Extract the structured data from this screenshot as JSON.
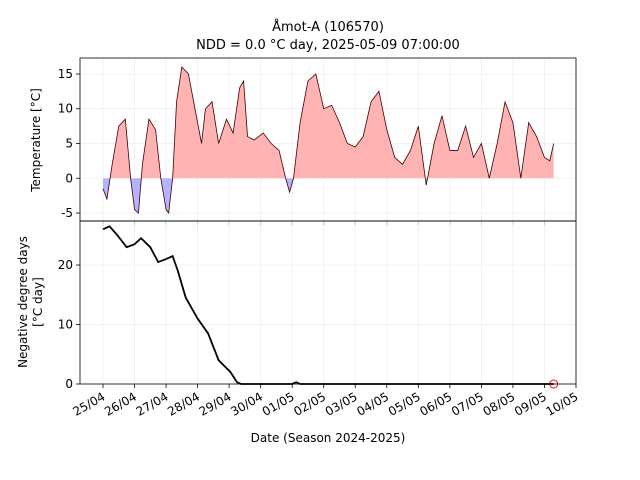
{
  "chart_data": [
    {
      "type": "area",
      "title": "Åmot-A (106570)",
      "subtitle": "NDD = 0.0 °C day, 2025-05-09 07:00:00",
      "ylabel": "Temperature [°C]",
      "xlim": [
        "2025-04-24T06:30",
        "2025-05-10T00:00"
      ],
      "ylim": [
        -6.15,
        17.3
      ],
      "yticks": [
        -5,
        0,
        5,
        10,
        15
      ],
      "grid": true,
      "line_color": "#400000",
      "positive_color": "#ffb3b3",
      "negative_color": "#b3b3ff",
      "x": [
        "2025-04-25T00:00",
        "2025-04-25T03:00",
        "2025-04-25T07:00",
        "2025-04-25T12:00",
        "2025-04-25T17:00",
        "2025-04-25T21:00",
        "2025-04-26T00:00",
        "2025-04-26T03:00",
        "2025-04-26T06:00",
        "2025-04-26T11:00",
        "2025-04-26T16:00",
        "2025-04-26T20:00",
        "2025-04-27T00:00",
        "2025-04-27T02:00",
        "2025-04-27T05:00",
        "2025-04-27T08:00",
        "2025-04-27T12:00",
        "2025-04-27T17:00",
        "2025-04-27T22:00",
        "2025-04-28T03:00",
        "2025-04-28T06:00",
        "2025-04-28T11:00",
        "2025-04-28T16:00",
        "2025-04-28T22:00",
        "2025-04-29T03:00",
        "2025-04-29T08:00",
        "2025-04-29T11:00",
        "2025-04-29T14:00",
        "2025-04-29T19:00",
        "2025-04-30T02:00",
        "2025-04-30T08:00",
        "2025-04-30T14:00",
        "2025-04-30T19:00",
        "2025-04-30T22:00",
        "2025-05-01T01:00",
        "2025-05-01T06:00",
        "2025-05-01T12:00",
        "2025-05-01T18:00",
        "2025-05-02T00:00",
        "2025-05-02T06:00",
        "2025-05-02T12:00",
        "2025-05-02T18:00",
        "2025-05-03T00:00",
        "2025-05-03T06:00",
        "2025-05-03T12:00",
        "2025-05-03T18:00",
        "2025-05-04T00:00",
        "2025-05-04T06:00",
        "2025-05-04T12:00",
        "2025-05-04T18:00",
        "2025-05-05T00:00",
        "2025-05-05T06:00",
        "2025-05-05T12:00",
        "2025-05-05T18:00",
        "2025-05-06T00:00",
        "2025-05-06T06:00",
        "2025-05-06T12:00",
        "2025-05-06T18:00",
        "2025-05-07T00:00",
        "2025-05-07T06:00",
        "2025-05-07T12:00",
        "2025-05-07T18:00",
        "2025-05-08T00:00",
        "2025-05-08T06:00",
        "2025-05-08T12:00",
        "2025-05-08T18:00",
        "2025-05-09T00:00",
        "2025-05-09T04:00",
        "2025-05-09T07:00"
      ],
      "values": [
        -1.5,
        -3,
        2,
        7.5,
        8.5,
        0,
        -4.5,
        -5,
        2,
        8.5,
        7,
        0,
        -4.5,
        -5,
        0,
        11,
        16,
        15,
        10,
        5,
        10,
        11,
        5,
        8.5,
        6.5,
        13,
        14,
        6,
        5.5,
        6.5,
        5,
        4,
        0,
        -2,
        0,
        8,
        14,
        15,
        10,
        10.5,
        8,
        5,
        4.5,
        6,
        11,
        12.5,
        7,
        3,
        2,
        4,
        7.5,
        -1,
        5,
        9,
        4,
        4,
        7.5,
        3,
        5,
        0,
        5,
        11,
        8,
        0,
        8,
        6,
        3,
        2.5,
        5
      ]
    },
    {
      "type": "line",
      "ylabel": [
        "Negative degree days",
        "[°C day]"
      ],
      "xlabel": "Date (Season 2024-2025)",
      "xlim": [
        "2025-04-24T06:30",
        "2025-05-10T00:00"
      ],
      "ylim": [
        0,
        27.4
      ],
      "yticks": [
        0,
        10,
        20
      ],
      "grid": true,
      "color": "#000000",
      "marker_color": "#ff0000",
      "xticks": [
        {
          "value": "2025-04-25T00:00",
          "label": "25/04"
        },
        {
          "value": "2025-04-26T00:00",
          "label": "26/04"
        },
        {
          "value": "2025-04-27T00:00",
          "label": "27/04"
        },
        {
          "value": "2025-04-28T00:00",
          "label": "28/04"
        },
        {
          "value": "2025-04-29T00:00",
          "label": "29/04"
        },
        {
          "value": "2025-04-30T00:00",
          "label": "30/04"
        },
        {
          "value": "2025-05-01T00:00",
          "label": "01/05"
        },
        {
          "value": "2025-05-02T00:00",
          "label": "02/05"
        },
        {
          "value": "2025-05-03T00:00",
          "label": "03/05"
        },
        {
          "value": "2025-05-04T00:00",
          "label": "04/05"
        },
        {
          "value": "2025-05-05T00:00",
          "label": "05/05"
        },
        {
          "value": "2025-05-06T00:00",
          "label": "06/05"
        },
        {
          "value": "2025-05-07T00:00",
          "label": "07/05"
        },
        {
          "value": "2025-05-08T00:00",
          "label": "08/05"
        },
        {
          "value": "2025-05-09T00:00",
          "label": "09/05"
        },
        {
          "value": "2025-05-10T00:00",
          "label": "10/05"
        }
      ],
      "x": [
        "2025-04-25T00:00",
        "2025-04-25T05:00",
        "2025-04-25T11:00",
        "2025-04-25T18:00",
        "2025-04-26T00:00",
        "2025-04-26T05:00",
        "2025-04-26T12:00",
        "2025-04-26T18:00",
        "2025-04-27T00:00",
        "2025-04-27T05:00",
        "2025-04-27T09:00",
        "2025-04-27T15:00",
        "2025-04-28T00:00",
        "2025-04-28T08:00",
        "2025-04-28T16:00",
        "2025-04-29T01:00",
        "2025-04-29T06:00",
        "2025-04-29T09:00",
        "2025-05-01T00:00",
        "2025-05-01T03:00",
        "2025-05-01T06:00",
        "2025-05-09T07:00"
      ],
      "values": [
        26,
        26.5,
        25,
        23,
        23.5,
        24.5,
        23,
        20.5,
        21,
        21.5,
        19,
        14.5,
        11,
        8.5,
        4,
        2,
        0.3,
        0,
        0,
        0.3,
        0,
        0
      ]
    }
  ]
}
